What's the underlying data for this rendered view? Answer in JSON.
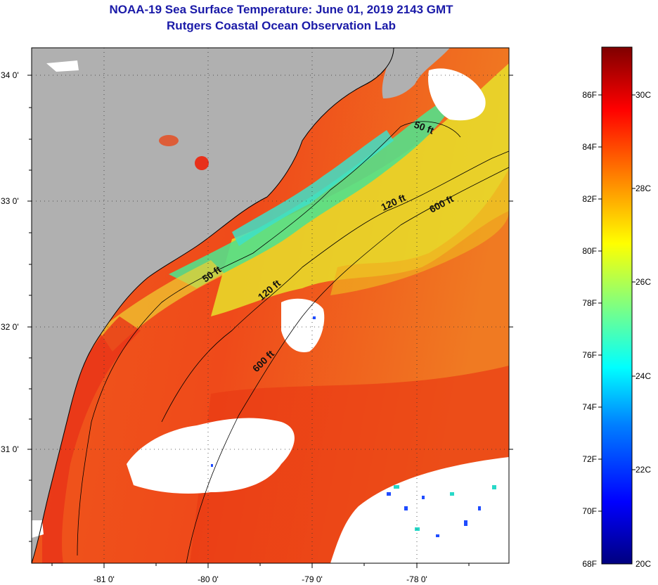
{
  "title_line1": "NOAA-19 Sea Surface Temperature:  June 01, 2019 2143 GMT",
  "title_line2": "Rutgers Coastal Ocean Observation Lab",
  "map": {
    "lat_labels": [
      "34 0'",
      "33 0'",
      "32 0'",
      "31 0'"
    ],
    "lon_labels": [
      "-81 0'",
      "-80 0'",
      "-79 0'",
      "-78 0'"
    ],
    "land_color": "#b0b0b0",
    "cloud_color": "#ffffff",
    "contour_labels": [
      "50 ft",
      "120 ft",
      "600 ft",
      "50 ft",
      "120 ft",
      "600 ft"
    ]
  },
  "colorbar": {
    "fahrenheit_labels": [
      "86F",
      "84F",
      "82F",
      "80F",
      "78F",
      "76F",
      "74F",
      "72F",
      "70F",
      "68F"
    ],
    "celsius_labels": [
      "30C",
      "28C",
      "26C",
      "24C",
      "22C",
      "20C"
    ],
    "range_f": [
      68,
      88
    ],
    "range_c": [
      20,
      31
    ]
  }
}
